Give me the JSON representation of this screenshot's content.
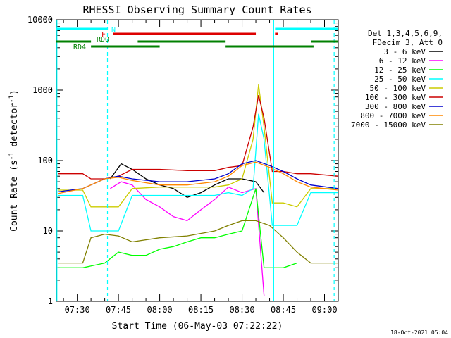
{
  "chart_data": {
    "type": "line",
    "title": "RHESSI Observing Summary Count Rates",
    "xlabel": "Start Time (06-May-03 07:22:22)",
    "ylabel_parts": [
      "Count Rate (s",
      "-1",
      " detector",
      "-1",
      ")"
    ],
    "yscale": "log",
    "ylim": [
      1,
      10000
    ],
    "xlim_minutes": [
      442.4,
      545
    ],
    "x_ticks": [
      {
        "label": "07:30",
        "min": 450
      },
      {
        "label": "07:45",
        "min": 465
      },
      {
        "label": "08:00",
        "min": 480
      },
      {
        "label": "08:15",
        "min": 495
      },
      {
        "label": "08:30",
        "min": 510
      },
      {
        "label": "08:45",
        "min": 525
      },
      {
        "label": "09:00",
        "min": 540
      }
    ],
    "y_ticks": [
      {
        "label": "1",
        "v": 1
      },
      {
        "label": "10",
        "v": 10
      },
      {
        "label": "100",
        "v": 100
      },
      {
        "label": "1000",
        "v": 1000
      },
      {
        "label": "10000",
        "v": 10000
      }
    ],
    "legend_header": [
      "Det 1,3,4,5,6,9,",
      "FDecim 3, Att 0"
    ],
    "legend_position": "right",
    "series": [
      {
        "name": "3 - 6 keV",
        "color": "#000000",
        "points": [
          [
            462,
            55
          ],
          [
            466,
            90
          ],
          [
            470,
            75
          ],
          [
            475,
            55
          ],
          [
            480,
            45
          ],
          [
            485,
            40
          ],
          [
            490,
            30
          ],
          [
            495,
            35
          ],
          [
            500,
            45
          ],
          [
            505,
            55
          ],
          [
            510,
            55
          ],
          [
            515,
            50
          ],
          [
            518,
            35
          ]
        ]
      },
      {
        "name": "6 - 12 keV",
        "color": "#ff00ff",
        "points": [
          [
            462,
            40
          ],
          [
            466,
            50
          ],
          [
            470,
            45
          ],
          [
            475,
            28
          ],
          [
            480,
            22
          ],
          [
            485,
            16
          ],
          [
            490,
            14
          ],
          [
            495,
            20
          ],
          [
            500,
            28
          ],
          [
            505,
            42
          ],
          [
            510,
            35
          ],
          [
            515,
            40
          ],
          [
            518,
            1.2
          ]
        ]
      },
      {
        "name": "12 - 25 keV",
        "color": "#00ff00",
        "points": [
          [
            443,
            3
          ],
          [
            452,
            3
          ],
          [
            460,
            3.5
          ],
          [
            465,
            5
          ],
          [
            470,
            4.5
          ],
          [
            475,
            4.5
          ],
          [
            480,
            5.5
          ],
          [
            485,
            6
          ],
          [
            490,
            7
          ],
          [
            495,
            8
          ],
          [
            500,
            8
          ],
          [
            505,
            9
          ],
          [
            510,
            10
          ],
          [
            515,
            40
          ],
          [
            518,
            3
          ],
          [
            525,
            3
          ],
          [
            530,
            3.5
          ]
        ]
      },
      {
        "name": "25 - 50 keV",
        "color": "#00ffff",
        "points": [
          [
            443,
            32
          ],
          [
            452,
            32
          ],
          [
            455,
            10
          ],
          [
            460,
            10
          ],
          [
            465,
            10
          ],
          [
            470,
            32
          ],
          [
            480,
            32
          ],
          [
            490,
            32
          ],
          [
            500,
            32
          ],
          [
            505,
            35
          ],
          [
            510,
            32
          ],
          [
            514,
            40
          ],
          [
            516,
            460
          ],
          [
            518,
            200
          ],
          [
            521,
            12
          ],
          [
            525,
            12
          ],
          [
            530,
            12
          ],
          [
            535,
            35
          ],
          [
            545,
            35
          ]
        ]
      },
      {
        "name": "50 - 100 keV",
        "color": "#cccc00",
        "points": [
          [
            443,
            38
          ],
          [
            452,
            38
          ],
          [
            455,
            22
          ],
          [
            460,
            22
          ],
          [
            465,
            22
          ],
          [
            470,
            40
          ],
          [
            480,
            42
          ],
          [
            490,
            42
          ],
          [
            500,
            42
          ],
          [
            505,
            45
          ],
          [
            510,
            55
          ],
          [
            514,
            200
          ],
          [
            516,
            1200
          ],
          [
            518,
            300
          ],
          [
            521,
            25
          ],
          [
            525,
            25
          ],
          [
            530,
            22
          ],
          [
            535,
            40
          ],
          [
            545,
            40
          ]
        ]
      },
      {
        "name": "100 - 300 keV",
        "color": "#cc0000",
        "points": [
          [
            443,
            65
          ],
          [
            452,
            65
          ],
          [
            455,
            55
          ],
          [
            460,
            55
          ],
          [
            465,
            60
          ],
          [
            470,
            75
          ],
          [
            480,
            75
          ],
          [
            490,
            72
          ],
          [
            500,
            72
          ],
          [
            505,
            80
          ],
          [
            510,
            85
          ],
          [
            514,
            300
          ],
          [
            516,
            850
          ],
          [
            518,
            400
          ],
          [
            521,
            70
          ],
          [
            525,
            70
          ],
          [
            530,
            65
          ],
          [
            535,
            65
          ],
          [
            545,
            60
          ]
        ]
      },
      {
        "name": "300 - 800 keV",
        "color": "#0000cc",
        "points": [
          [
            443,
            36
          ],
          [
            452,
            40
          ],
          [
            460,
            55
          ],
          [
            465,
            60
          ],
          [
            470,
            55
          ],
          [
            480,
            50
          ],
          [
            490,
            50
          ],
          [
            500,
            55
          ],
          [
            505,
            65
          ],
          [
            510,
            90
          ],
          [
            515,
            100
          ],
          [
            520,
            85
          ],
          [
            525,
            70
          ],
          [
            530,
            55
          ],
          [
            535,
            45
          ],
          [
            545,
            40
          ]
        ]
      },
      {
        "name": "800 - 7000 keV",
        "color": "#ff8800",
        "points": [
          [
            443,
            34
          ],
          [
            452,
            40
          ],
          [
            460,
            55
          ],
          [
            465,
            58
          ],
          [
            470,
            52
          ],
          [
            480,
            45
          ],
          [
            490,
            45
          ],
          [
            500,
            50
          ],
          [
            505,
            60
          ],
          [
            510,
            85
          ],
          [
            515,
            95
          ],
          [
            520,
            80
          ],
          [
            525,
            65
          ],
          [
            530,
            50
          ],
          [
            535,
            42
          ],
          [
            545,
            38
          ]
        ]
      },
      {
        "name": "7000 - 15000 keV",
        "color": "#808000",
        "points": [
          [
            443,
            3.5
          ],
          [
            452,
            3.5
          ],
          [
            455,
            8
          ],
          [
            460,
            9
          ],
          [
            465,
            8.5
          ],
          [
            470,
            7
          ],
          [
            480,
            8
          ],
          [
            490,
            8.5
          ],
          [
            500,
            10
          ],
          [
            505,
            12
          ],
          [
            510,
            14
          ],
          [
            515,
            14
          ],
          [
            520,
            12
          ],
          [
            525,
            8
          ],
          [
            530,
            5
          ],
          [
            535,
            3.5
          ],
          [
            545,
            3.5
          ]
        ]
      }
    ],
    "flag_bars": [
      {
        "label": "N",
        "color": "#00ffff",
        "segments": [
          [
            442.4,
            461
          ],
          [
            522,
            545
          ]
        ]
      },
      {
        "label": "F",
        "color": "#dd0000",
        "segments": [
          [
            463,
            515
          ],
          [
            522,
            523
          ]
        ]
      },
      {
        "label": "RDO",
        "color": "#008000",
        "segments": [
          [
            442.4,
            455
          ],
          [
            472,
            504
          ],
          [
            535,
            545
          ]
        ]
      },
      {
        "label": "RD4",
        "color": "#008000",
        "segments": [
          [
            455,
            480
          ],
          [
            504,
            536
          ]
        ]
      }
    ],
    "vlines": [
      {
        "min": 442.6,
        "style": "solid"
      },
      {
        "min": 461,
        "style": "dashed"
      },
      {
        "min": 521.5,
        "style": "solid"
      },
      {
        "min": 543.5,
        "style": "dashed"
      }
    ]
  },
  "timestamp": "18-Oct-2021 05:04"
}
